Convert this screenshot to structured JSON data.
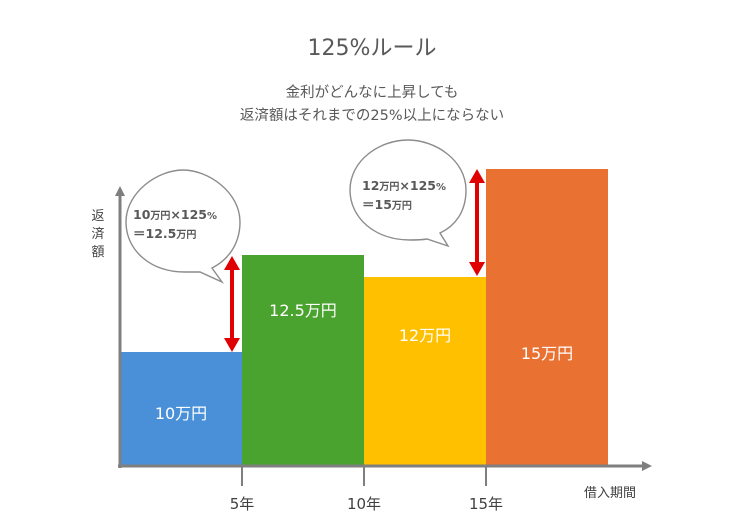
{
  "title": "125%ルール",
  "subtitle": [
    "金利がどんなに上昇しても",
    "返済額はそれまでの25%以上にならない"
  ],
  "y_axis_label": [
    "返",
    "済",
    "額"
  ],
  "x_axis_label": "借入期間",
  "x_ticks": [
    "5年",
    "10年",
    "15年"
  ],
  "bars": [
    {
      "label": "10万円",
      "value": 10,
      "color": "#4a90d9"
    },
    {
      "label": "12.5万円",
      "value": 12.5,
      "color": "#4aa32f"
    },
    {
      "label": "12万円",
      "value": 12,
      "color": "#ffc000"
    },
    {
      "label": "15万円",
      "value": 15,
      "color": "#e97132"
    }
  ],
  "callouts": [
    {
      "line1": {
        "a": "10",
        "b": "万円",
        "c": "×125",
        "d": "%"
      },
      "line2": {
        "a": "＝12.5",
        "b": "万円"
      }
    },
    {
      "line1": {
        "a": "12",
        "b": "万円",
        "c": "×125",
        "d": "%"
      },
      "line2": {
        "a": "＝15",
        "b": "万円"
      }
    }
  ],
  "colors": {
    "axis": "#7f7f7f",
    "arrow": "#e00000"
  }
}
